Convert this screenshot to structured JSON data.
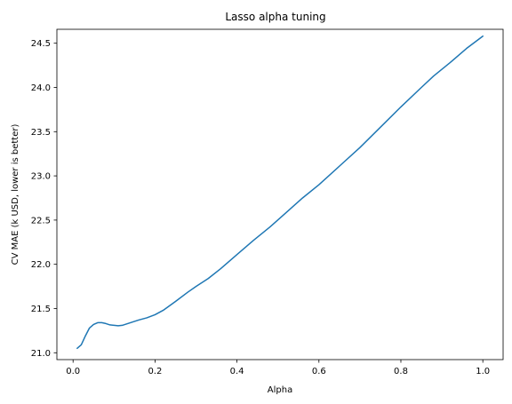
{
  "chart_data": {
    "type": "line",
    "title": "Lasso alpha tuning",
    "xlabel": "Alpha",
    "ylabel": "CV MAE (k USD, lower is better)",
    "xlim": [
      -0.0395,
      1.0495
    ],
    "ylim": [
      20.9225,
      24.6575
    ],
    "grid": false,
    "x_ticks": [
      0.0,
      0.2,
      0.4,
      0.6,
      0.8,
      1.0
    ],
    "x_tick_labels": [
      "0.0",
      "0.2",
      "0.4",
      "0.6",
      "0.8",
      "1.0"
    ],
    "y_ticks": [
      21.0,
      21.5,
      22.0,
      22.5,
      23.0,
      23.5,
      24.0,
      24.5
    ],
    "y_tick_labels": [
      "21.0",
      "21.5",
      "22.0",
      "22.5",
      "23.0",
      "23.5",
      "24.0",
      "24.5"
    ],
    "series": [
      {
        "color": "#1f77b4",
        "x": [
          0.01,
          0.02,
          0.03,
          0.04,
          0.05,
          0.06,
          0.07,
          0.08,
          0.09,
          0.1,
          0.11,
          0.12,
          0.14,
          0.16,
          0.18,
          0.2,
          0.22,
          0.25,
          0.28,
          0.3,
          0.33,
          0.36,
          0.4,
          0.44,
          0.48,
          0.52,
          0.56,
          0.6,
          0.65,
          0.7,
          0.75,
          0.8,
          0.85,
          0.88,
          0.92,
          0.96,
          1.0
        ],
        "y": [
          21.05,
          21.09,
          21.19,
          21.28,
          21.32,
          21.34,
          21.34,
          21.33,
          21.315,
          21.31,
          21.305,
          21.31,
          21.34,
          21.37,
          21.395,
          21.43,
          21.48,
          21.58,
          21.685,
          21.75,
          21.84,
          21.95,
          22.11,
          22.27,
          22.42,
          22.585,
          22.75,
          22.9,
          23.11,
          23.32,
          23.55,
          23.78,
          24.0,
          24.13,
          24.28,
          24.44,
          24.58
        ]
      }
    ]
  }
}
